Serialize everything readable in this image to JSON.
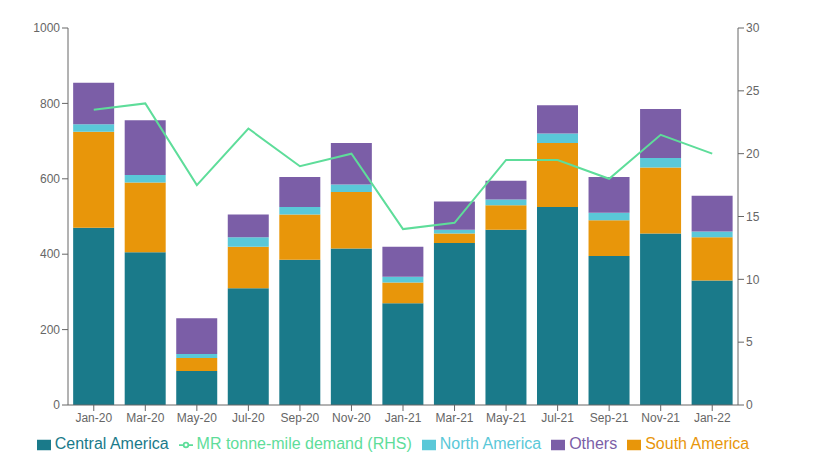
{
  "chart_data": {
    "type": "bar",
    "stacked": true,
    "categories": [
      "Jan-20",
      "Mar-20",
      "May-20",
      "Jul-20",
      "Sep-20",
      "Nov-20",
      "Jan-21",
      "Mar-21",
      "May-21",
      "Jul-21",
      "Sep-21",
      "Nov-21",
      "Jan-22"
    ],
    "series": [
      {
        "name": "Central America",
        "color": "#1a7a8a",
        "values": [
          470,
          405,
          90,
          310,
          385,
          415,
          270,
          430,
          465,
          525,
          395,
          455,
          330
        ]
      },
      {
        "name": "South America",
        "color": "#e8960a",
        "values": [
          255,
          185,
          35,
          110,
          120,
          150,
          55,
          25,
          65,
          170,
          95,
          175,
          115
        ]
      },
      {
        "name": "North America",
        "color": "#5ac8d8",
        "values": [
          20,
          20,
          10,
          25,
          20,
          20,
          15,
          10,
          15,
          25,
          20,
          25,
          15
        ]
      },
      {
        "name": "Others",
        "color": "#7b5ea7",
        "values": [
          110,
          145,
          95,
          60,
          80,
          110,
          80,
          75,
          50,
          75,
          95,
          130,
          95
        ]
      },
      {
        "name": "MR tonne-mile demand (RHS)",
        "type": "line",
        "axis": "y2",
        "color": "#5edd9a",
        "values": [
          23.5,
          24.0,
          17.5,
          22.0,
          19.0,
          20.0,
          14.0,
          14.5,
          19.5,
          19.5,
          18.0,
          21.5,
          20.0
        ]
      }
    ],
    "ylim": [
      0,
      1000
    ],
    "yticks": [
      0,
      200,
      400,
      600,
      800,
      1000
    ],
    "y2lim": [
      0,
      30
    ],
    "y2ticks": [
      0,
      5,
      10,
      15,
      20,
      25,
      30
    ],
    "grid": false,
    "legend": "bottom"
  }
}
